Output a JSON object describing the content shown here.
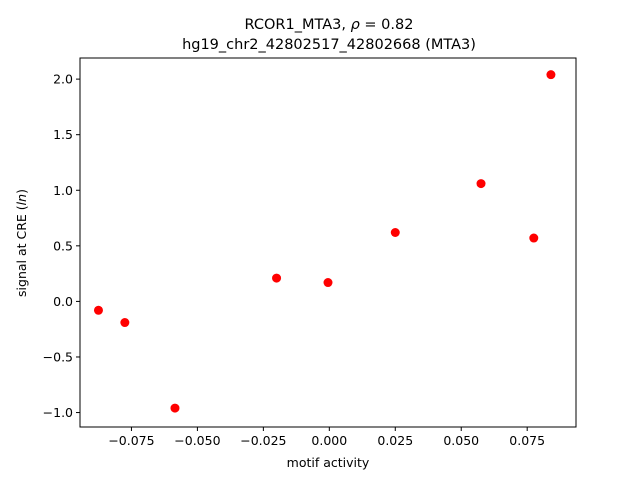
{
  "chart_data": {
    "type": "scatter",
    "title_line1_prefix": "RCOR1_MTA3, ",
    "title_rho_symbol": "ρ",
    "title_rho_value": " = 0.82",
    "title_line2": "hg19_chr2_42802517_42802668 (MTA3)",
    "xlabel": "motif activity",
    "ylabel_prefix": "signal at CRE (",
    "ylabel_italic": "ln",
    "ylabel_suffix": ")",
    "xlim": [
      -0.0945,
      0.0935
    ],
    "ylim": [
      -1.13,
      2.19
    ],
    "xticks": [
      -0.075,
      -0.05,
      -0.025,
      0.0,
      0.025,
      0.05,
      0.075
    ],
    "xtick_labels": [
      "−0.075",
      "−0.050",
      "−0.025",
      "0.000",
      "0.025",
      "0.050",
      "0.075"
    ],
    "yticks": [
      -1.0,
      -0.5,
      0.0,
      0.5,
      1.0,
      1.5,
      2.0
    ],
    "ytick_labels": [
      "−1.0",
      "−0.5",
      "0.0",
      "0.5",
      "1.0",
      "1.5",
      "2.0"
    ],
    "grid": false,
    "marker_color": "#ff0000",
    "points": [
      {
        "x": -0.0875,
        "y": -0.08
      },
      {
        "x": -0.0775,
        "y": -0.19
      },
      {
        "x": -0.0585,
        "y": -0.96
      },
      {
        "x": -0.02,
        "y": 0.21
      },
      {
        "x": -0.0005,
        "y": 0.17
      },
      {
        "x": 0.025,
        "y": 0.62
      },
      {
        "x": 0.0575,
        "y": 1.06
      },
      {
        "x": 0.0775,
        "y": 0.57
      },
      {
        "x": 0.084,
        "y": 2.04
      }
    ]
  }
}
